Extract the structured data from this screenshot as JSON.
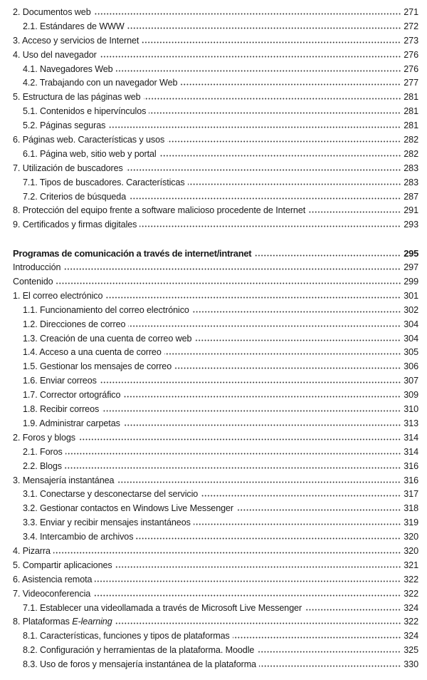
{
  "sections": [
    {
      "heading": null,
      "entries": [
        {
          "level": 1,
          "label": "2. Documentos web",
          "page": "271"
        },
        {
          "level": 2,
          "label": "2.1. Estándares de WWW",
          "page": "272"
        },
        {
          "level": 1,
          "label": "3. Acceso y servicios de Internet",
          "page": "273"
        },
        {
          "level": 1,
          "label": "4. Uso del navegador",
          "page": "276"
        },
        {
          "level": 2,
          "label": "4.1. Navegadores Web",
          "page": "276"
        },
        {
          "level": 2,
          "label": "4.2. Trabajando con un navegador Web",
          "page": "277"
        },
        {
          "level": 1,
          "label": "5. Estructura de las páginas web",
          "page": "281"
        },
        {
          "level": 2,
          "label": "5.1. Contenidos e hipervínculos",
          "page": "281"
        },
        {
          "level": 2,
          "label": "5.2. Páginas seguras",
          "page": "281"
        },
        {
          "level": 1,
          "label": "6. Páginas web. Características y usos",
          "page": "282"
        },
        {
          "level": 2,
          "label": "6.1. Página web, sitio web y portal",
          "page": "282"
        },
        {
          "level": 1,
          "label": "7. Utilización de buscadores",
          "page": "283"
        },
        {
          "level": 2,
          "label": "7.1. Tipos de buscadores. Características",
          "page": "283"
        },
        {
          "level": 2,
          "label": "7.2. Criterios de búsqueda",
          "page": "287"
        },
        {
          "level": 1,
          "label": "8. Protección del equipo frente a software malicioso procedente de Internet",
          "page": "291"
        },
        {
          "level": 1,
          "label": "9. Certificados y firmas digitales",
          "page": "293"
        }
      ]
    },
    {
      "heading": {
        "label": "Programas de comunicación a través de internet/intranet",
        "page": "295"
      },
      "entries": [
        {
          "level": 1,
          "label": "Introducción",
          "page": "297"
        },
        {
          "level": 1,
          "label": "Contenido",
          "page": "299"
        },
        {
          "level": 1,
          "label": "1. El correo electrónico",
          "page": "301"
        },
        {
          "level": 2,
          "label": "1.1. Funcionamiento del correo electrónico",
          "page": "302"
        },
        {
          "level": 2,
          "label": "1.2. Direcciones de correo",
          "page": "304"
        },
        {
          "level": 2,
          "label": "1.3. Creación de una cuenta de correo web",
          "page": "304"
        },
        {
          "level": 2,
          "label": "1.4. Acceso a una cuenta de correo",
          "page": "305"
        },
        {
          "level": 2,
          "label": "1.5. Gestionar los mensajes de correo",
          "page": "306"
        },
        {
          "level": 2,
          "label": "1.6. Enviar correos",
          "page": "307"
        },
        {
          "level": 2,
          "label": "1.7. Corrector ortográfico",
          "page": "309"
        },
        {
          "level": 2,
          "label": "1.8. Recibir correos",
          "page": "310"
        },
        {
          "level": 2,
          "label": "1.9. Administrar carpetas",
          "page": "313"
        },
        {
          "level": 1,
          "label": "2. Foros y blogs",
          "page": "314"
        },
        {
          "level": 2,
          "label": "2.1. Foros",
          "page": "314"
        },
        {
          "level": 2,
          "label": "2.2. Blogs",
          "page": "316"
        },
        {
          "level": 1,
          "label": "3. Mensajería instantánea",
          "page": "316"
        },
        {
          "level": 2,
          "label": "3.1. Conectarse y desconectarse del servicio",
          "page": "317"
        },
        {
          "level": 2,
          "label": "3.2. Gestionar contactos en Windows Live Messenger",
          "page": "318"
        },
        {
          "level": 2,
          "label": "3.3. Enviar y recibir mensajes instantáneos",
          "page": "319"
        },
        {
          "level": 2,
          "label": "3.4. Intercambio de archivos",
          "page": "320"
        },
        {
          "level": 1,
          "label": "4. Pizarra",
          "page": "320"
        },
        {
          "level": 1,
          "label": "5. Compartir aplicaciones",
          "page": "321"
        },
        {
          "level": 1,
          "label": "6. Asistencia remota",
          "page": "322"
        },
        {
          "level": 1,
          "label": "7. Videoconferencia",
          "page": "322"
        },
        {
          "level": 2,
          "label": "7.1. Establecer una videollamada a través de Microsoft Live Messenger",
          "page": "324"
        },
        {
          "level": 1,
          "label": "8. Plataformas ",
          "label_italic": "E-learning",
          "page": "322"
        },
        {
          "level": 2,
          "label": "8.1. Características, funciones y tipos de plataformas",
          "page": "324"
        },
        {
          "level": 2,
          "label": "8.2. Configuración y herramientas de la plataforma. Moodle",
          "page": "325"
        },
        {
          "level": 2,
          "label": "8.3. Uso de foros y mensajería instantánea de la plataforma",
          "page": "330"
        }
      ]
    }
  ]
}
